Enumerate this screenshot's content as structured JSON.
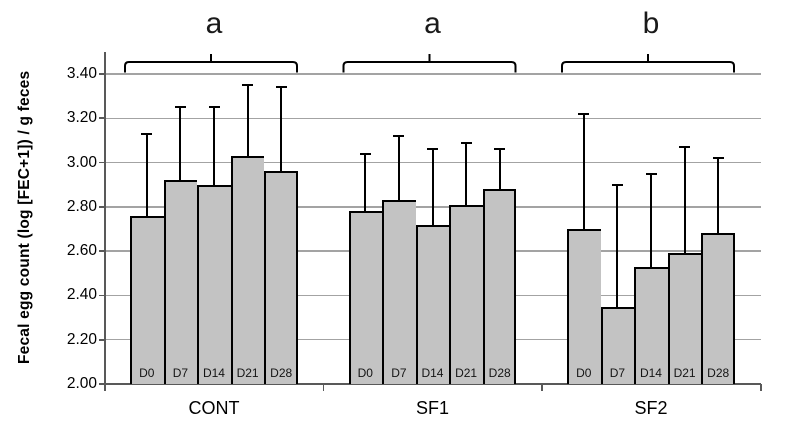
{
  "chart_data": {
    "type": "bar",
    "title": "",
    "ylabel": "Fecal egg count (log [FEC+1]) / g feces",
    "xlabel": "",
    "grid": true,
    "legend": "none",
    "y_axis": {
      "min": 2.0,
      "max": 3.4,
      "step": 0.2,
      "tick_labels": [
        "3.40",
        "3.20",
        "3.00",
        "2.80",
        "2.60",
        "2.40",
        "2.20",
        "2.00"
      ]
    },
    "categories": [
      "D0",
      "D7",
      "D14",
      "D21",
      "D28"
    ],
    "groups": [
      {
        "label": "CONT",
        "significance_letter": "a",
        "values": [
          2.76,
          2.92,
          2.9,
          3.03,
          2.96
        ],
        "error_bar_tops": [
          3.13,
          3.25,
          3.25,
          3.35,
          3.34
        ]
      },
      {
        "label": "SF1",
        "significance_letter": "a",
        "values": [
          2.78,
          2.83,
          2.72,
          2.81,
          2.88
        ],
        "error_bar_tops": [
          3.04,
          3.12,
          3.06,
          3.09,
          3.06
        ]
      },
      {
        "label": "SF2",
        "significance_letter": "b",
        "values": [
          2.7,
          2.35,
          2.53,
          2.59,
          2.68
        ],
        "error_bar_tops": [
          3.22,
          2.9,
          2.95,
          3.07,
          3.02
        ]
      }
    ],
    "colors": {
      "bar_fill": "#c3c3c3",
      "bar_border": "#000000",
      "gridline": "#a3a3a3",
      "axis": "#595959",
      "error_bar": "#000000",
      "text": "#000000"
    }
  }
}
